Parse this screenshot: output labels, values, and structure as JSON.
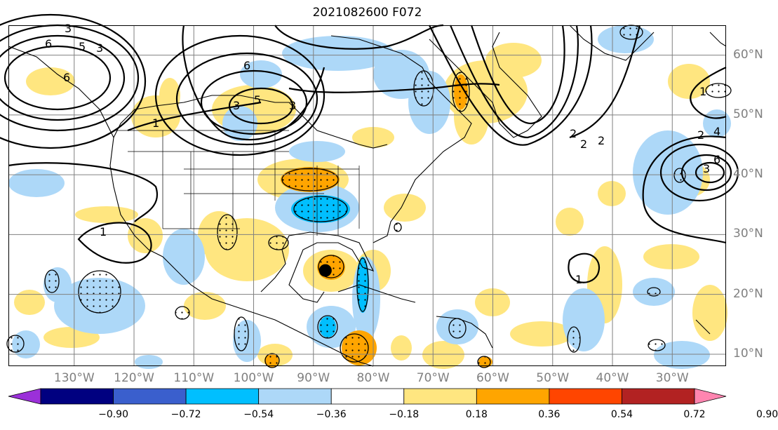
{
  "title": "2021082600 F072",
  "lat_labels": [
    {
      "text": "60°N",
      "lat": 60
    },
    {
      "text": "50°N",
      "lat": 50
    },
    {
      "text": "40°N",
      "lat": 40
    },
    {
      "text": "30°N",
      "lat": 30
    },
    {
      "text": "20°N",
      "lat": 20
    },
    {
      "text": "10°N",
      "lat": 10
    }
  ],
  "lon_labels": [
    {
      "text": "130°W",
      "lon": -130
    },
    {
      "text": "120°W",
      "lon": -120
    },
    {
      "text": "110°W",
      "lon": -110
    },
    {
      "text": "100°W",
      "lon": -100
    },
    {
      "text": "90°W",
      "lon": -90
    },
    {
      "text": "80°W",
      "lon": -80
    },
    {
      "text": "70°W",
      "lon": -70
    },
    {
      "text": "60°W",
      "lon": -60
    },
    {
      "text": "50°W",
      "lon": -50
    },
    {
      "text": "40°W",
      "lon": -40
    },
    {
      "text": "30°W",
      "lon": -30
    }
  ],
  "map_extent": {
    "lon_min": -141,
    "lon_max": -21,
    "lat_min": 8,
    "lat_max": 65
  },
  "colorbar": {
    "ticks": [
      "−0.90",
      "−0.72",
      "−0.54",
      "−0.36",
      "−0.18",
      "0.18",
      "0.36",
      "0.54",
      "0.72",
      "0.90"
    ],
    "colors": [
      "#9b30d9",
      "#000080",
      "#3a5fcd",
      "#00bfff",
      "#add8f8",
      "#ffffff",
      "#ffe680",
      "#ffa500",
      "#ff4500",
      "#b22222",
      "#ff85b0"
    ]
  },
  "contour_labels": [
    "3",
    "6",
    "5",
    "3",
    "6",
    "5",
    "3",
    "3",
    "6",
    "2",
    "2",
    "1",
    "2",
    "4",
    "6",
    "3",
    "2",
    "1",
    "1",
    "1"
  ],
  "marker": {
    "lon": -88,
    "lat": 24
  }
}
